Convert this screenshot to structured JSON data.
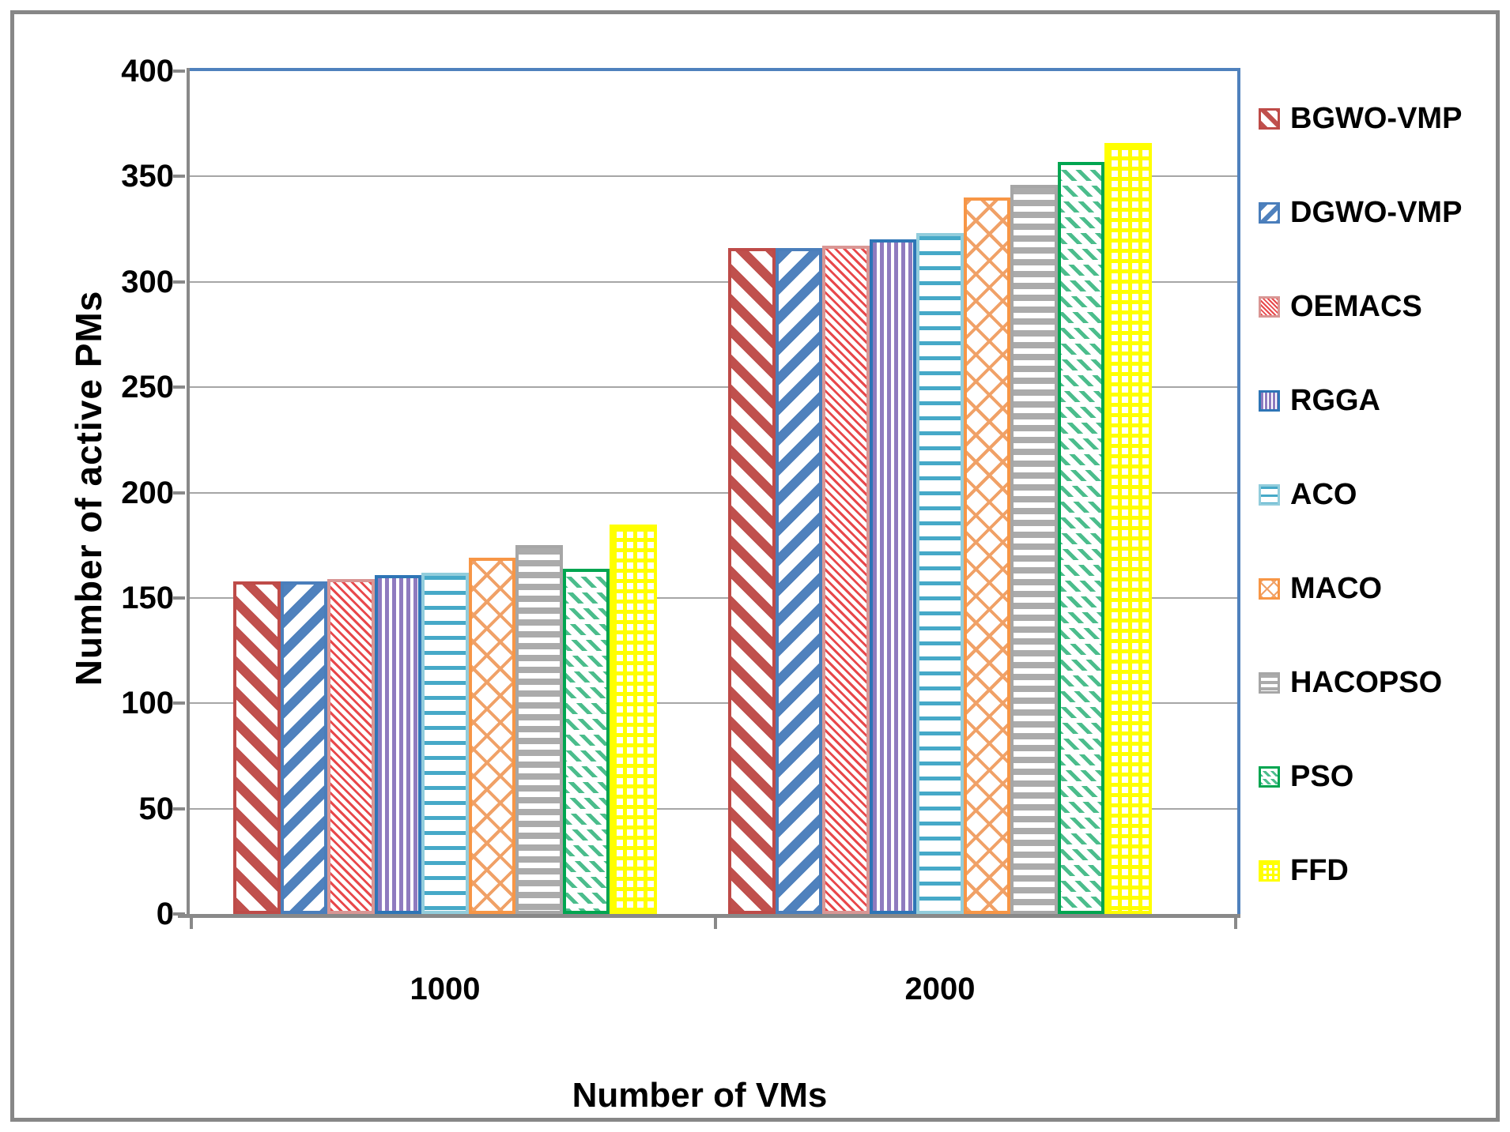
{
  "figure": {
    "outer_border_color": "#878787",
    "plot_border_color": "#4F81BD",
    "axis_color": "#898989",
    "gridline_color": "#A6A6A6",
    "text_color": "#000000"
  },
  "chart_data": {
    "type": "bar",
    "title": "",
    "xlabel": "Number of VMs",
    "ylabel": "Number of active PMs",
    "categories": [
      "1000",
      "2000"
    ],
    "ylim": [
      0,
      400
    ],
    "yticks": [
      0,
      50,
      100,
      150,
      200,
      250,
      300,
      350,
      400
    ],
    "grid": true,
    "legend_position": "right",
    "series": [
      {
        "name": "BGWO-VMP",
        "values": [
          158,
          316
        ],
        "color": "#BE4B48",
        "pattern": "diag-down",
        "pattern_color": "#C0504D"
      },
      {
        "name": "DGWO-VMP",
        "values": [
          158,
          316
        ],
        "color": "#4A7EBB",
        "pattern": "diag-up",
        "pattern_color": "#4F81BD"
      },
      {
        "name": "OEMACS",
        "values": [
          159,
          317
        ],
        "color": "#D99694",
        "pattern": "thin-diag",
        "pattern_color": "#E8484B"
      },
      {
        "name": "RGGA",
        "values": [
          161,
          320
        ],
        "color": "#2E75B6",
        "pattern": "vertical",
        "pattern_color": "#8F7BBF"
      },
      {
        "name": "ACO",
        "values": [
          162,
          323
        ],
        "color": "#92CDDC",
        "pattern": "horizontal",
        "pattern_color": "#46A9C8"
      },
      {
        "name": "MACO",
        "values": [
          169,
          340
        ],
        "color": "#F79646",
        "pattern": "diamond",
        "pattern_color": "#F0A167"
      },
      {
        "name": "HACOPSO",
        "values": [
          175,
          346
        ],
        "color": "#A6A6A6",
        "pattern": "horizontal-thick",
        "pattern_color": "#ABABAB"
      },
      {
        "name": "PSO",
        "values": [
          164,
          357
        ],
        "color": "#00A550",
        "pattern": "dash-rows",
        "pattern_color": "#4BBD8C"
      },
      {
        "name": "FFD",
        "values": [
          185,
          366
        ],
        "color": "#FFFF00",
        "pattern": "grid",
        "pattern_color": "#FFFF00"
      }
    ]
  }
}
